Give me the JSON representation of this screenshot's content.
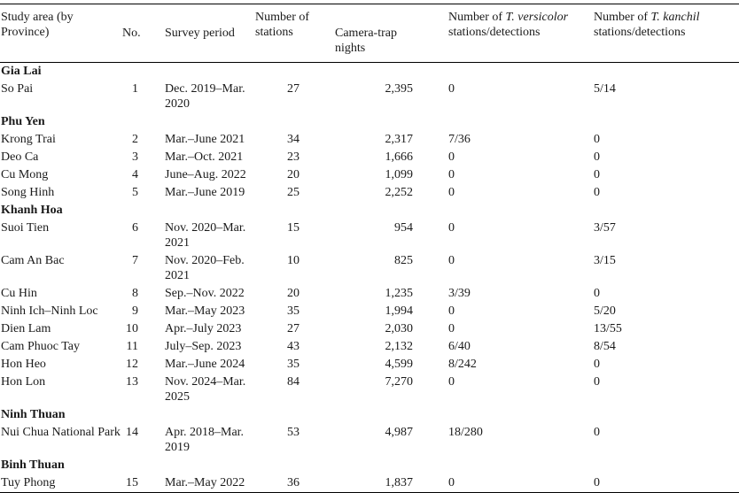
{
  "headers": {
    "area": "Study area (by Province)",
    "no": "No.",
    "period": "Survey period",
    "stations": "Number of stations",
    "nights": "Camera-trap nights",
    "versicolor_pre": "Number of ",
    "versicolor_name": "T. versicolor",
    "versicolor_post": " stations/detections",
    "kanchil_pre": "Number of ",
    "kanchil_name": "T. kanchil",
    "kanchil_post": " stations/detections"
  },
  "groups": [
    {
      "province": "Gia Lai",
      "rows": [
        {
          "area": "So Pai",
          "no": "1",
          "period": "Dec. 2019–Mar. 2020",
          "stations": "27",
          "nights": "2,395",
          "versicolor": "0",
          "kanchil": "5/14"
        }
      ]
    },
    {
      "province": "Phu Yen",
      "rows": [
        {
          "area": "Krong Trai",
          "no": "2",
          "period": "Mar.–June 2021",
          "stations": "34",
          "nights": "2,317",
          "versicolor": "7/36",
          "kanchil": "0"
        },
        {
          "area": "Deo Ca",
          "no": "3",
          "period": "Mar.–Oct. 2021",
          "stations": "23",
          "nights": "1,666",
          "versicolor": "0",
          "kanchil": "0"
        },
        {
          "area": "Cu Mong",
          "no": "4",
          "period": "June–Aug. 2022",
          "stations": "20",
          "nights": "1,099",
          "versicolor": "0",
          "kanchil": "0"
        },
        {
          "area": "Song Hinh",
          "no": "5",
          "period": "Mar.–June 2019",
          "stations": "25",
          "nights": "2,252",
          "versicolor": "0",
          "kanchil": "0"
        }
      ]
    },
    {
      "province": "Khanh Hoa",
      "rows": [
        {
          "area": "Suoi Tien",
          "no": "6",
          "period": "Nov. 2020–Mar. 2021",
          "stations": "15",
          "nights": "954",
          "versicolor": "0",
          "kanchil": "3/57"
        },
        {
          "area": "Cam An Bac",
          "no": "7",
          "period": "Nov. 2020–Feb. 2021",
          "stations": "10",
          "nights": "825",
          "versicolor": "0",
          "kanchil": "3/15"
        },
        {
          "area": "Cu Hin",
          "no": "8",
          "period": "Sep.–Nov. 2022",
          "stations": "20",
          "nights": "1,235",
          "versicolor": "3/39",
          "kanchil": "0"
        },
        {
          "area": "Ninh Ich–Ninh Loc",
          "no": "9",
          "period": "Mar.–May 2023",
          "stations": "35",
          "nights": "1,994",
          "versicolor": "0",
          "kanchil": "5/20"
        },
        {
          "area": "Dien Lam",
          "no": "10",
          "period": "Apr.–July 2023",
          "stations": "27",
          "nights": "2,030",
          "versicolor": "0",
          "kanchil": "13/55"
        },
        {
          "area": "Cam Phuoc Tay",
          "no": "11",
          "period": "July–Sep. 2023",
          "stations": "43",
          "nights": "2,132",
          "versicolor": "6/40",
          "kanchil": "8/54"
        },
        {
          "area": "Hon Heo",
          "no": "12",
          "period": "Mar.–June 2024",
          "stations": "35",
          "nights": "4,599",
          "versicolor": "8/242",
          "kanchil": "0"
        },
        {
          "area": "Hon Lon",
          "no": "13",
          "period": "Nov. 2024–Mar. 2025",
          "stations": "84",
          "nights": "7,270",
          "versicolor": "0",
          "kanchil": "0"
        }
      ]
    },
    {
      "province": "Ninh Thuan",
      "rows": [
        {
          "area": "Nui Chua National Park",
          "no": "14",
          "period": "Apr. 2018–Mar. 2019",
          "stations": "53",
          "nights": "4,987",
          "versicolor": "18/280",
          "kanchil": "0"
        }
      ]
    },
    {
      "province": "Binh Thuan",
      "rows": [
        {
          "area": "Tuy Phong",
          "no": "15",
          "period": "Mar.–May 2022",
          "stations": "36",
          "nights": "1,837",
          "versicolor": "0",
          "kanchil": "0"
        }
      ]
    }
  ]
}
